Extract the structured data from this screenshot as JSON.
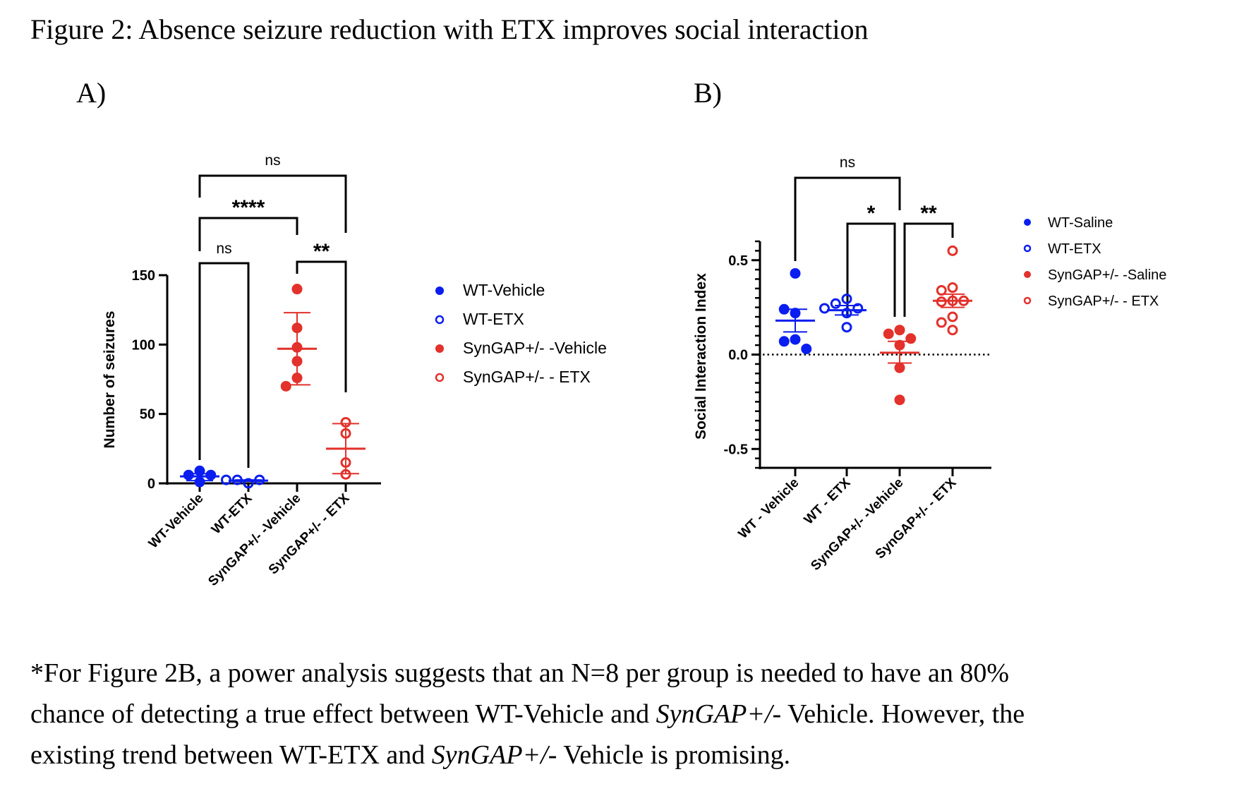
{
  "figure": {
    "title": "Figure 2: Absence seizure reduction with ETX improves social interaction",
    "panel_a_label": "A)",
    "panel_b_label": "B)"
  },
  "footnote": {
    "line1": "*For Figure 2B, a power analysis suggests that an N=8 per group is needed to have an 80%",
    "line2_a": "chance of detecting a true effect between WT-Vehicle and ",
    "line2_i": "SynGAP+/-",
    "line2_b": " Vehicle. However, the",
    "line3_a": "existing trend between WT-ETX and ",
    "line3_i": "SynGAP+/-",
    "line3_b": " Vehicle is promising."
  },
  "colors": {
    "wt": "#0a1ef0",
    "syngap": "#e3312b",
    "axis": "#000000"
  },
  "chart_data": [
    {
      "type": "scatter",
      "panel": "A",
      "title": "",
      "xlabel": "",
      "ylabel": "Number of seizures",
      "ylim": [
        0,
        150
      ],
      "yticks": [
        0,
        50,
        100,
        150
      ],
      "categories": [
        "WT-Vehicle",
        "WT-ETX",
        "SynGAP+/- -Vehicle",
        "SynGAP+/- - ETX"
      ],
      "series": [
        {
          "name": "WT-Vehicle",
          "color": "wt",
          "filled": true,
          "values": [
            9,
            6,
            6,
            1
          ],
          "mean": 5,
          "sem": [
            2,
            7
          ]
        },
        {
          "name": "WT-ETX",
          "color": "wt",
          "filled": false,
          "values": [
            0,
            2.5,
            2.5,
            2.5
          ],
          "mean": 2,
          "sem": [
            1.5,
            2.5
          ]
        },
        {
          "name": "SynGAP+/- -Vehicle",
          "color": "syngap",
          "filled": true,
          "values": [
            140,
            112,
            98,
            88,
            76,
            70
          ],
          "mean": 97,
          "sem": [
            71,
            123
          ]
        },
        {
          "name": "SynGAP+/- - ETX",
          "color": "syngap",
          "filled": false,
          "values": [
            44,
            36,
            15,
            6.5
          ],
          "mean": 25,
          "sem": [
            7,
            43
          ]
        }
      ],
      "comparisons": [
        {
          "from": 0,
          "to": 3,
          "label": "ns"
        },
        {
          "from": 0,
          "to": 2,
          "label": "****"
        },
        {
          "from": 0,
          "to": 1,
          "label": "ns"
        },
        {
          "from": 2,
          "to": 3,
          "label": "**"
        }
      ],
      "legend": {
        "position": "right",
        "entries": [
          {
            "label": "WT-Vehicle",
            "color": "wt",
            "filled": true
          },
          {
            "label": "WT-ETX",
            "color": "wt",
            "filled": false
          },
          {
            "label": "SynGAP+/- -Vehicle",
            "color": "syngap",
            "filled": true
          },
          {
            "label": "SynGAP+/- - ETX",
            "color": "syngap",
            "filled": false
          }
        ]
      }
    },
    {
      "type": "scatter",
      "panel": "B",
      "title": "",
      "xlabel": "",
      "ylabel": "Social Interaction Index",
      "ylim": [
        -0.6,
        0.6
      ],
      "yticks": [
        -0.5,
        0.0,
        0.5
      ],
      "ytick_labels": [
        "-0.5",
        "0.0",
        "0.5"
      ],
      "minor_tick_step": 0.05,
      "reference_line": 0.0,
      "categories": [
        "WT - Vehicle",
        "WT - ETX",
        "SynGAP+/- -Vehicle",
        "SynGAP+/- - ETX"
      ],
      "series": [
        {
          "name": "WT-Saline",
          "color": "wt",
          "filled": true,
          "values": [
            0.43,
            0.22,
            0.24,
            0.08,
            0.07,
            0.03
          ],
          "mean": 0.18,
          "sem": [
            0.12,
            0.24
          ]
        },
        {
          "name": "WT-ETX",
          "color": "wt",
          "filled": false,
          "values": [
            0.295,
            0.27,
            0.245,
            0.245,
            0.22,
            0.145
          ],
          "mean": 0.235,
          "sem": [
            0.21,
            0.26
          ]
        },
        {
          "name": "SynGAP+/- -Saline",
          "color": "syngap",
          "filled": true,
          "values": [
            0.13,
            0.11,
            0.085,
            0.05,
            -0.07,
            -0.24
          ],
          "mean": 0.01,
          "sem": [
            -0.045,
            0.07
          ]
        },
        {
          "name": "SynGAP+/- - ETX",
          "color": "syngap",
          "filled": false,
          "values": [
            0.55,
            0.355,
            0.34,
            0.285,
            0.28,
            0.285,
            0.2,
            0.17,
            0.13
          ],
          "mean": 0.285,
          "sem": [
            0.25,
            0.32
          ]
        }
      ],
      "comparisons": [
        {
          "from": 0,
          "to": 2,
          "label": "ns"
        },
        {
          "from": 1,
          "to": 2,
          "label": "*"
        },
        {
          "from": 2,
          "to": 3,
          "label": "**"
        }
      ],
      "legend": {
        "position": "right",
        "entries": [
          {
            "label": "WT-Saline",
            "color": "wt",
            "filled": true
          },
          {
            "label": "WT-ETX",
            "color": "wt",
            "filled": false
          },
          {
            "label": "SynGAP+/- -Saline",
            "color": "syngap",
            "filled": true
          },
          {
            "label": "SynGAP+/- - ETX",
            "color": "syngap",
            "filled": false
          }
        ]
      }
    }
  ]
}
